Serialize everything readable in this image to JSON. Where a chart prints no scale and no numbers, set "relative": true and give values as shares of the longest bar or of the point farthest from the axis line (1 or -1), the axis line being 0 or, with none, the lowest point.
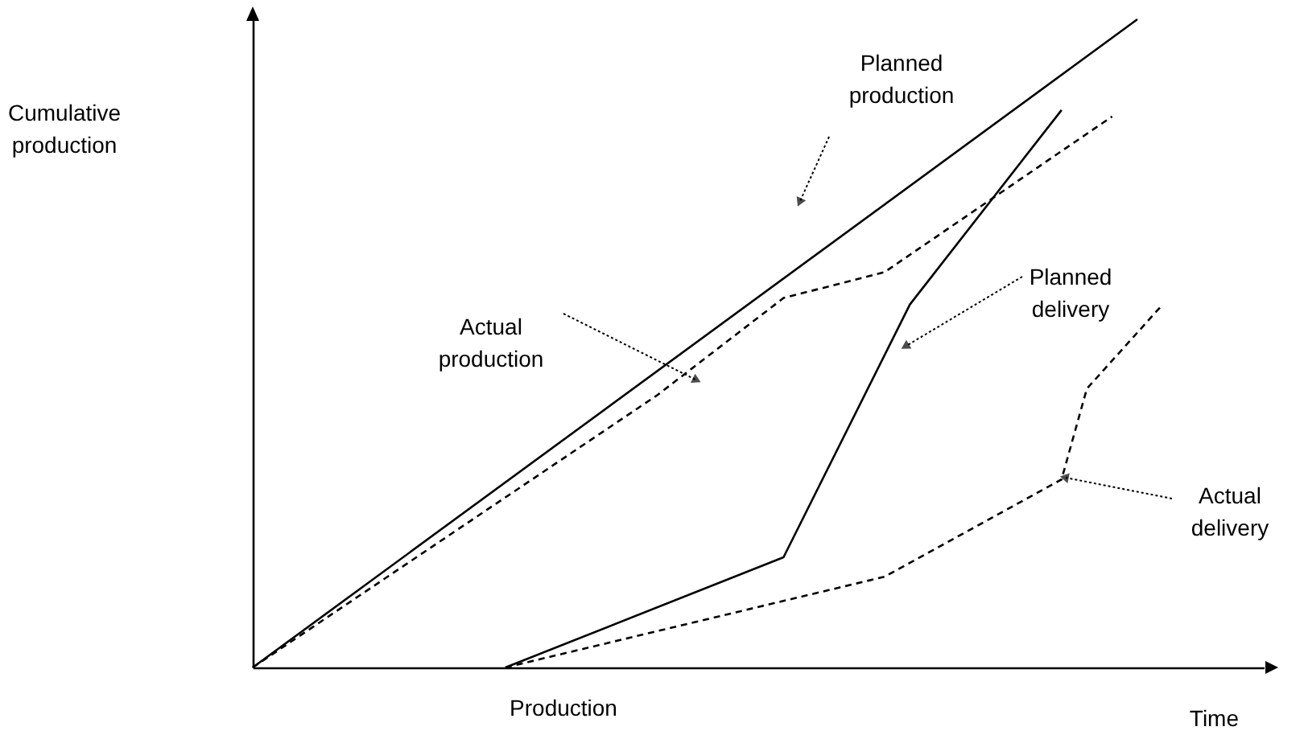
{
  "chart_data": {
    "type": "line",
    "relative": true,
    "xlabel": "Time",
    "categories": [
      null,
      null,
      null,
      null,
      null,
      null,
      null,
      null,
      null,
      null,
      null,
      null,
      null,
      null,
      null,
      null,
      null,
      null,
      null,
      null,
      null,
      null,
      null,
      null,
      null,
      null,
      null,
      null,
      null,
      null,
      null,
      null,
      null,
      null,
      null,
      null,
      null,
      null,
      null,
      null,
      null
    ],
    "series": [
      {
        "color": "#000000",
        "line_style": "solid",
        "values": [
          0,
          null,
          null,
          null,
          null,
          null,
          null,
          null,
          null,
          null,
          null,
          null,
          null,
          null,
          null,
          null,
          null,
          null,
          null,
          null,
          null,
          null,
          null,
          null,
          null,
          null,
          null,
          null,
          null,
          null,
          null,
          null,
          null,
          null,
          null,
          1,
          null,
          null,
          null,
          null,
          null
        ]
      },
      {
        "color": "#000000",
        "line_style": "dashed",
        "values": [
          0,
          null,
          null,
          null,
          null,
          null,
          null,
          null,
          null,
          null,
          null,
          null,
          null,
          null,
          null,
          null,
          0.42,
          null,
          null,
          null,
          null,
          0.57,
          null,
          null,
          null,
          0.61,
          null,
          null,
          null,
          null,
          null,
          null,
          null,
          null,
          0.85,
          null,
          null,
          null,
          null,
          null,
          null
        ]
      },
      {
        "color": "#000000",
        "line_style": "solid",
        "values": [
          null,
          null,
          null,
          null,
          null,
          null,
          null,
          null,
          null,
          null,
          0,
          null,
          null,
          null,
          null,
          null,
          null,
          null,
          null,
          null,
          null,
          0.17,
          null,
          null,
          null,
          null,
          0.56,
          null,
          null,
          null,
          null,
          null,
          0.86,
          null,
          null,
          null,
          null,
          null,
          null,
          null,
          null
        ]
      },
      {
        "color": "#000000",
        "line_style": "dashed",
        "values": [
          null,
          null,
          null,
          null,
          null,
          null,
          null,
          null,
          null,
          null,
          0,
          null,
          null,
          null,
          null,
          null,
          null,
          null,
          null,
          null,
          null,
          null,
          null,
          null,
          null,
          0.14,
          null,
          null,
          null,
          null,
          null,
          null,
          0.29,
          0.43,
          null,
          null,
          0.56,
          null,
          null,
          null,
          null
        ]
      }
    ],
    "annotations": [
      "Planned production",
      "Actual production",
      "Planned delivery",
      "Actual delivery",
      "Production",
      "Cumulative production"
    ]
  }
}
